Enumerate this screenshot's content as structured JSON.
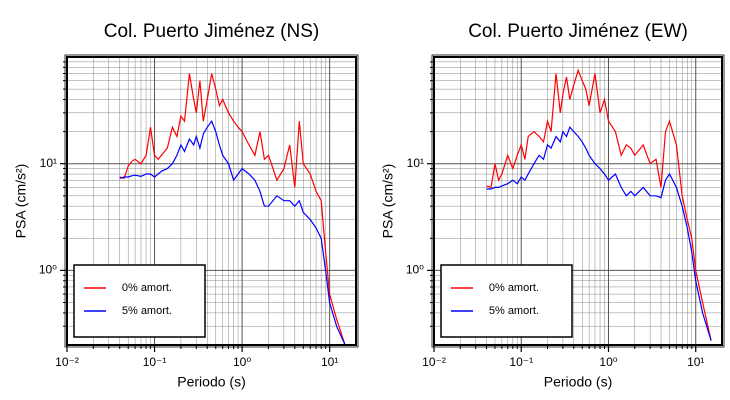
{
  "chart_data": [
    {
      "type": "line",
      "title": "Col. Puerto Jiménez (NS)",
      "xlabel": "Periodo (s)",
      "ylabel": "PSA (cm/s²)",
      "xscale": "log",
      "yscale": "log",
      "grid": true,
      "legend": "lower left",
      "xlim": [
        0.01,
        20
      ],
      "ylim": [
        0.2,
        100
      ],
      "xticks": [
        {
          "value": 0.01,
          "label": "10⁻²"
        },
        {
          "value": 0.1,
          "label": "10⁻¹"
        },
        {
          "value": 1,
          "label": "10⁰"
        },
        {
          "value": 10,
          "label": "10¹"
        }
      ],
      "yticks": [
        {
          "value": 1,
          "label": "10⁰"
        },
        {
          "value": 10,
          "label": "10¹"
        }
      ],
      "x": [
        0.04,
        0.045,
        0.05,
        0.055,
        0.06,
        0.07,
        0.08,
        0.09,
        0.1,
        0.11,
        0.12,
        0.14,
        0.16,
        0.18,
        0.2,
        0.22,
        0.25,
        0.28,
        0.3,
        0.33,
        0.36,
        0.4,
        0.45,
        0.5,
        0.55,
        0.6,
        0.7,
        0.8,
        0.9,
        1.0,
        1.2,
        1.4,
        1.6,
        1.8,
        2.0,
        2.5,
        3,
        3.5,
        4,
        4.5,
        5,
        6,
        7,
        8,
        9,
        10,
        12,
        15
      ],
      "series": [
        {
          "name": "0% amort.",
          "color": "#ff0000",
          "values": [
            7.5,
            7.3,
            9.5,
            10.5,
            11,
            10,
            12,
            22,
            12,
            11,
            12,
            14,
            22,
            18,
            28,
            25,
            70,
            40,
            30,
            60,
            25,
            40,
            70,
            50,
            35,
            40,
            30,
            25,
            22,
            20,
            15,
            12,
            20,
            11,
            12,
            7,
            9,
            15,
            6,
            25,
            10,
            8,
            5.5,
            4.5,
            1.5,
            0.6,
            0.35,
            0.2
          ]
        },
        {
          "name": "5% amort.",
          "color": "#0000ff",
          "values": [
            7.3,
            7.5,
            7.5,
            7.7,
            7.8,
            7.6,
            8,
            8,
            7.5,
            8,
            8.5,
            9,
            10,
            12,
            15,
            13,
            17,
            15,
            18,
            14,
            19,
            22,
            25,
            20,
            15,
            12,
            10,
            7,
            8,
            9,
            8,
            7,
            5.5,
            4,
            4,
            5,
            4.5,
            4.5,
            4,
            4.5,
            3.5,
            3,
            2.5,
            2,
            1,
            0.5,
            0.3,
            0.2
          ]
        }
      ]
    },
    {
      "type": "line",
      "title": "Col. Puerto Jiménez (EW)",
      "xlabel": "Periodo (s)",
      "ylabel": "PSA (cm/s²)",
      "xscale": "log",
      "yscale": "log",
      "grid": true,
      "legend": "lower left",
      "xlim": [
        0.01,
        20
      ],
      "ylim": [
        0.2,
        100
      ],
      "xticks": [
        {
          "value": 0.01,
          "label": "10⁻²"
        },
        {
          "value": 0.1,
          "label": "10⁻¹"
        },
        {
          "value": 1,
          "label": "10⁰"
        },
        {
          "value": 10,
          "label": "10¹"
        }
      ],
      "yticks": [
        {
          "value": 1,
          "label": "10⁰"
        },
        {
          "value": 10,
          "label": "10¹"
        }
      ],
      "x": [
        0.04,
        0.045,
        0.05,
        0.055,
        0.06,
        0.07,
        0.08,
        0.09,
        0.1,
        0.11,
        0.12,
        0.14,
        0.16,
        0.18,
        0.2,
        0.22,
        0.25,
        0.28,
        0.3,
        0.33,
        0.36,
        0.4,
        0.45,
        0.5,
        0.55,
        0.6,
        0.7,
        0.8,
        0.9,
        1.0,
        1.2,
        1.4,
        1.6,
        1.8,
        2.0,
        2.5,
        3,
        3.5,
        4,
        4.5,
        5,
        6,
        7,
        8,
        9,
        10,
        12,
        15
      ],
      "series": [
        {
          "name": "0% amort.",
          "color": "#ff0000",
          "values": [
            6.2,
            6,
            10,
            7,
            8,
            12,
            9,
            12,
            15,
            11,
            18,
            20,
            18,
            16,
            25,
            20,
            70,
            30,
            45,
            65,
            40,
            55,
            75,
            60,
            50,
            35,
            70,
            30,
            40,
            25,
            20,
            12,
            15,
            14,
            12,
            15,
            10,
            11,
            6,
            20,
            25,
            15,
            5,
            3,
            2,
            1,
            0.5,
            0.22
          ]
        },
        {
          "name": "5% amort.",
          "color": "#0000ff",
          "values": [
            5.8,
            5.8,
            6,
            6,
            6.2,
            6.5,
            7,
            6.5,
            7.5,
            7,
            8,
            10,
            12,
            11,
            15,
            14,
            18,
            16,
            20,
            18,
            22,
            20,
            18,
            16,
            14,
            12,
            10,
            9,
            8,
            7,
            8,
            6,
            5,
            5.5,
            5,
            6,
            5,
            5,
            4.8,
            7,
            8,
            6,
            4,
            2.5,
            1.5,
            0.8,
            0.4,
            0.22
          ]
        }
      ]
    }
  ]
}
